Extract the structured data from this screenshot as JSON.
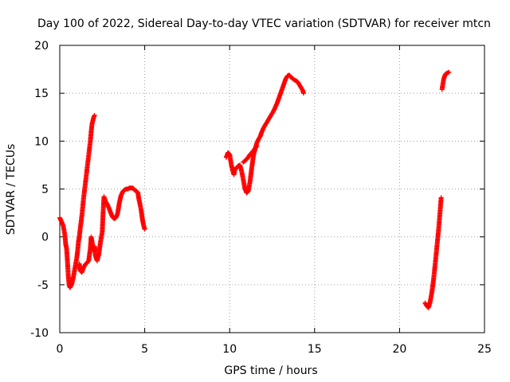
{
  "chart_data": {
    "type": "scatter",
    "title": "Day 100 of 2022, Sidereal Day-to-day VTEC variation (SDTVAR) for receiver mtcn",
    "xlabel": "GPS time / hours",
    "ylabel": "SDTVAR / TECUs",
    "xlim": [
      0,
      25
    ],
    "ylim": [
      -10,
      20
    ],
    "xticks": [
      0,
      5,
      10,
      15,
      20,
      25
    ],
    "yticks": [
      -10,
      -5,
      0,
      5,
      10,
      15,
      20
    ],
    "grid": true,
    "marker": "plus",
    "color": "#ff0000",
    "series": [
      {
        "segments": [
          [
            [
              0.0,
              2.0
            ],
            [
              0.1,
              1.6
            ],
            [
              0.2,
              1.2
            ],
            [
              0.3,
              0.2
            ],
            [
              0.35,
              -0.8
            ],
            [
              0.4,
              -1.2
            ],
            [
              0.45,
              -2.5
            ],
            [
              0.5,
              -4.0
            ],
            [
              0.55,
              -5.0
            ],
            [
              0.6,
              -5.3
            ],
            [
              0.7,
              -5.0
            ],
            [
              0.8,
              -4.2
            ],
            [
              0.9,
              -3.2
            ],
            [
              1.0,
              -2.2
            ],
            [
              1.05,
              -1.5
            ],
            [
              1.1,
              -0.5
            ],
            [
              1.15,
              0.0
            ],
            [
              1.2,
              0.8
            ],
            [
              1.3,
              2.2
            ],
            [
              1.4,
              4.0
            ],
            [
              1.5,
              5.5
            ],
            [
              1.6,
              7.0
            ],
            [
              1.7,
              8.5
            ],
            [
              1.8,
              10.0
            ],
            [
              1.85,
              11.0
            ],
            [
              1.9,
              11.8
            ],
            [
              2.0,
              12.5
            ],
            [
              2.05,
              12.7
            ]
          ],
          [
            [
              1.15,
              -2.8
            ],
            [
              1.2,
              -3.5
            ],
            [
              1.3,
              -3.7
            ],
            [
              1.4,
              -3.2
            ],
            [
              1.5,
              -2.9
            ],
            [
              1.6,
              -2.7
            ],
            [
              1.7,
              -2.5
            ],
            [
              1.8,
              -1.2
            ],
            [
              1.85,
              0.0
            ],
            [
              1.9,
              -0.5
            ],
            [
              2.0,
              -1.5
            ],
            [
              2.05,
              -1.0
            ],
            [
              2.1,
              -2.0
            ],
            [
              2.2,
              -2.5
            ],
            [
              2.3,
              -1.8
            ],
            [
              2.4,
              -0.5
            ],
            [
              2.5,
              0.5
            ],
            [
              2.55,
              2.5
            ],
            [
              2.6,
              4.2
            ],
            [
              2.7,
              3.7
            ],
            [
              2.8,
              3.4
            ],
            [
              2.9,
              3.0
            ],
            [
              3.0,
              2.5
            ],
            [
              3.1,
              2.1
            ],
            [
              3.2,
              1.9
            ],
            [
              3.3,
              2.0
            ],
            [
              3.4,
              2.4
            ],
            [
              3.5,
              3.5
            ],
            [
              3.6,
              4.3
            ],
            [
              3.7,
              4.7
            ],
            [
              3.8,
              4.9
            ],
            [
              3.9,
              5.0
            ],
            [
              4.0,
              5.0
            ],
            [
              4.1,
              5.1
            ],
            [
              4.2,
              5.1
            ],
            [
              4.3,
              5.1
            ],
            [
              4.4,
              4.9
            ],
            [
              4.5,
              4.8
            ],
            [
              4.6,
              4.6
            ],
            [
              4.65,
              4.0
            ],
            [
              4.7,
              3.6
            ],
            [
              4.8,
              2.7
            ],
            [
              4.85,
              2.0
            ],
            [
              4.9,
              1.5
            ],
            [
              4.95,
              1.1
            ],
            [
              5.0,
              0.8
            ]
          ],
          [
            [
              9.8,
              8.3
            ],
            [
              9.9,
              8.8
            ],
            [
              10.0,
              8.6
            ],
            [
              10.1,
              7.5
            ],
            [
              10.2,
              6.8
            ],
            [
              10.25,
              6.5
            ],
            [
              10.3,
              7.0
            ],
            [
              10.4,
              7.2
            ],
            [
              10.5,
              7.4
            ],
            [
              10.6,
              7.5
            ],
            [
              10.7,
              6.9
            ],
            [
              10.8,
              6.0
            ],
            [
              10.9,
              5.0
            ],
            [
              11.0,
              4.6
            ],
            [
              11.1,
              4.8
            ],
            [
              11.2,
              5.8
            ],
            [
              11.3,
              7.2
            ],
            [
              11.4,
              8.5
            ],
            [
              11.5,
              9.2
            ],
            [
              11.6,
              9.8
            ],
            [
              11.7,
              10.2
            ],
            [
              11.8,
              10.5
            ],
            [
              11.9,
              11.0
            ],
            [
              12.0,
              11.4
            ],
            [
              12.2,
              12.0
            ],
            [
              12.4,
              12.6
            ],
            [
              12.6,
              13.2
            ],
            [
              12.8,
              14.0
            ],
            [
              13.0,
              15.0
            ],
            [
              13.2,
              16.0
            ],
            [
              13.3,
              16.5
            ],
            [
              13.4,
              16.8
            ],
            [
              13.5,
              16.9
            ],
            [
              13.6,
              16.7
            ],
            [
              13.8,
              16.4
            ],
            [
              14.0,
              16.2
            ],
            [
              14.1,
              15.9
            ],
            [
              14.2,
              15.6
            ],
            [
              14.3,
              15.3
            ],
            [
              14.35,
              15.0
            ]
          ],
          [
            [
              10.8,
              7.8
            ],
            [
              11.0,
              8.1
            ],
            [
              11.2,
              8.6
            ],
            [
              11.4,
              9.0
            ],
            [
              11.6,
              9.5
            ]
          ],
          [
            [
              21.5,
              -6.9
            ],
            [
              21.6,
              -7.2
            ],
            [
              21.7,
              -7.4
            ],
            [
              21.8,
              -6.8
            ],
            [
              21.9,
              -5.8
            ],
            [
              22.0,
              -4.5
            ],
            [
              22.1,
              -2.8
            ],
            [
              22.2,
              -1.0
            ],
            [
              22.3,
              0.8
            ],
            [
              22.4,
              3.0
            ],
            [
              22.45,
              4.1
            ]
          ],
          [
            [
              22.5,
              15.4
            ],
            [
              22.6,
              16.5
            ],
            [
              22.7,
              17.0
            ],
            [
              22.8,
              17.1
            ],
            [
              22.9,
              17.2
            ]
          ]
        ]
      }
    ]
  }
}
